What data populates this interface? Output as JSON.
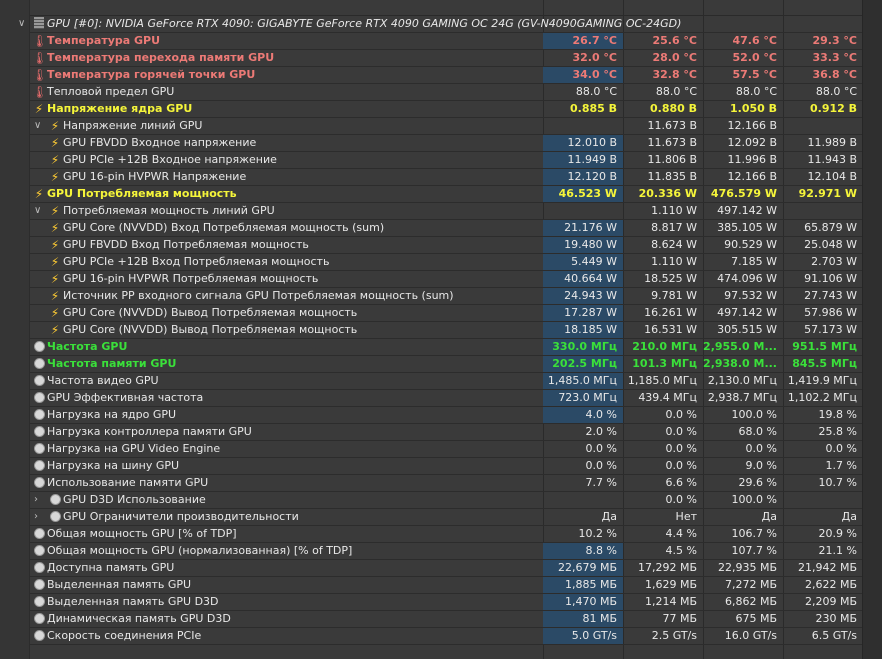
{
  "device": {
    "title": "GPU [#0]: NVIDIA GeForce RTX 4090: GIGABYTE GeForce RTX 4090 GAMING OC 24G (GV-N4090GAMING OC-24GD)",
    "icon": "gpu-chip-icon"
  },
  "colors": {
    "red": "#ec7a76",
    "yellow": "#f5f53a",
    "green": "#3ae03a",
    "highlight": "#2b4a66"
  },
  "rows": [
    {
      "label": "Температура GPU",
      "icon": "therm",
      "style": "red",
      "hl": true,
      "v": [
        "26.7 °C",
        "25.6 °C",
        "47.6 °C",
        "29.3 °C"
      ]
    },
    {
      "label": "Температура перехода памяти GPU",
      "icon": "therm",
      "style": "red",
      "hl": false,
      "v": [
        "32.0 °C",
        "28.0 °C",
        "52.0 °C",
        "33.3 °C"
      ]
    },
    {
      "label": "Температура горячей точки GPU",
      "icon": "therm",
      "style": "red",
      "hl": true,
      "v": [
        "34.0 °C",
        "32.8 °C",
        "57.5 °C",
        "36.8 °C"
      ]
    },
    {
      "label": "Тепловой предел GPU",
      "icon": "therm",
      "style": "",
      "hl": false,
      "v": [
        "88.0 °C",
        "88.0 °C",
        "88.0 °C",
        "88.0 °C"
      ]
    },
    {
      "label": "Напряжение ядра GPU",
      "icon": "bolt",
      "style": "yel",
      "hl": false,
      "v": [
        "0.885 В",
        "0.880 В",
        "1.050 В",
        "0.912 В"
      ]
    },
    {
      "label": "Напряжение линий GPU",
      "icon": "bolt",
      "style": "",
      "hl": false,
      "sub": true,
      "exp": true,
      "v": [
        "",
        "11.673 В",
        "12.166 В",
        ""
      ]
    },
    {
      "label": "GPU FBVDD Входное напряжение",
      "icon": "bolt",
      "style": "",
      "hl": true,
      "sub": true,
      "v": [
        "12.010 В",
        "11.673 В",
        "12.092 В",
        "11.989 В"
      ]
    },
    {
      "label": "GPU PCIe +12В Входное напряжение",
      "icon": "bolt",
      "style": "",
      "hl": true,
      "sub": true,
      "v": [
        "11.949 В",
        "11.806 В",
        "11.996 В",
        "11.943 В"
      ]
    },
    {
      "label": "GPU 16-pin HVPWR Напряжение",
      "icon": "bolt",
      "style": "",
      "hl": true,
      "sub": true,
      "v": [
        "12.120 В",
        "11.835 В",
        "12.166 В",
        "12.104 В"
      ]
    },
    {
      "label": "GPU Потребляемая мощность",
      "icon": "bolt",
      "style": "yel",
      "hl": true,
      "v": [
        "46.523 W",
        "20.336 W",
        "476.579 W",
        "92.971 W"
      ]
    },
    {
      "label": "Потребляемая мощность линий GPU",
      "icon": "bolt",
      "style": "",
      "hl": false,
      "sub": true,
      "exp": true,
      "v": [
        "",
        "1.110 W",
        "497.142 W",
        ""
      ]
    },
    {
      "label": "GPU Core (NVVDD) Вход Потребляемая мощность (sum)",
      "icon": "bolt",
      "style": "",
      "hl": true,
      "sub": true,
      "v": [
        "21.176 W",
        "8.817 W",
        "385.105 W",
        "65.879 W"
      ]
    },
    {
      "label": "GPU FBVDD Вход Потребляемая мощность",
      "icon": "bolt",
      "style": "",
      "hl": true,
      "sub": true,
      "v": [
        "19.480 W",
        "8.624 W",
        "90.529 W",
        "25.048 W"
      ]
    },
    {
      "label": "GPU PCIe +12В Вход Потребляемая мощность",
      "icon": "bolt",
      "style": "",
      "hl": true,
      "sub": true,
      "v": [
        "5.449 W",
        "1.110 W",
        "7.185 W",
        "2.703 W"
      ]
    },
    {
      "label": "GPU 16-pin HVPWR Потребляемая мощность",
      "icon": "bolt",
      "style": "",
      "hl": true,
      "sub": true,
      "v": [
        "40.664 W",
        "18.525 W",
        "474.096 W",
        "91.106 W"
      ]
    },
    {
      "label": "Источник PP входного сигнала GPU Потребляемая мощность (sum)",
      "icon": "bolt",
      "style": "",
      "hl": true,
      "sub": true,
      "v": [
        "24.943 W",
        "9.781 W",
        "97.532 W",
        "27.743 W"
      ]
    },
    {
      "label": "GPU Core (NVVDD) Вывод Потребляемая мощность",
      "icon": "bolt",
      "style": "",
      "hl": true,
      "sub": true,
      "v": [
        "17.287 W",
        "16.261 W",
        "497.142 W",
        "57.986 W"
      ]
    },
    {
      "label": "GPU Core (NVVDD) Вывод Потребляемая мощность",
      "icon": "bolt",
      "style": "",
      "hl": true,
      "sub": true,
      "v": [
        "18.185 W",
        "16.531 W",
        "305.515 W",
        "57.173 W"
      ]
    },
    {
      "label": "Частота GPU",
      "icon": "clock",
      "style": "grn",
      "hl": true,
      "v": [
        "330.0 МГц",
        "210.0 МГц",
        "2,955.0 М...",
        "951.5 МГц"
      ]
    },
    {
      "label": "Частота памяти GPU",
      "icon": "clock",
      "style": "grn",
      "hl": true,
      "v": [
        "202.5 МГц",
        "101.3 МГц",
        "2,938.0 М...",
        "845.5 МГц"
      ]
    },
    {
      "label": "Частота видео GPU",
      "icon": "clock",
      "style": "",
      "hl": true,
      "v": [
        "1,485.0 МГц",
        "1,185.0 МГц",
        "2,130.0 МГц",
        "1,419.9 МГц"
      ]
    },
    {
      "label": "GPU Эффективная частота",
      "icon": "clock",
      "style": "",
      "hl": true,
      "v": [
        "723.0 МГц",
        "439.4 МГц",
        "2,938.7 МГц",
        "1,102.2 МГц"
      ]
    },
    {
      "label": "Нагрузка на ядро GPU",
      "icon": "clock",
      "style": "",
      "hl": true,
      "v": [
        "4.0 %",
        "0.0 %",
        "100.0 %",
        "19.8 %"
      ]
    },
    {
      "label": "Нагрузка контроллера памяти GPU",
      "icon": "clock",
      "style": "",
      "hl": false,
      "v": [
        "2.0 %",
        "0.0 %",
        "68.0 %",
        "25.8 %"
      ]
    },
    {
      "label": "Нагрузка на GPU Video Engine",
      "icon": "clock",
      "style": "",
      "hl": false,
      "v": [
        "0.0 %",
        "0.0 %",
        "0.0 %",
        "0.0 %"
      ]
    },
    {
      "label": "Нагрузка на шину GPU",
      "icon": "clock",
      "style": "",
      "hl": false,
      "v": [
        "0.0 %",
        "0.0 %",
        "9.0 %",
        "1.7 %"
      ]
    },
    {
      "label": "Использование памяти GPU",
      "icon": "clock",
      "style": "",
      "hl": false,
      "v": [
        "7.7 %",
        "6.6 %",
        "29.6 %",
        "10.7 %"
      ]
    },
    {
      "label": "GPU D3D Использование",
      "icon": "clock",
      "style": "",
      "hl": false,
      "sub": true,
      "exp": true,
      "collapsed": true,
      "v": [
        "",
        "0.0 %",
        "100.0 %",
        ""
      ]
    },
    {
      "label": "GPU Ограничители производительности",
      "icon": "clock",
      "style": "",
      "hl": false,
      "sub": true,
      "exp": true,
      "collapsed": true,
      "v": [
        "Да",
        "Нет",
        "Да",
        "Да"
      ]
    },
    {
      "label": "Общая мощность GPU [% of TDP]",
      "icon": "clock",
      "style": "",
      "hl": false,
      "v": [
        "10.2 %",
        "4.4 %",
        "106.7 %",
        "20.9 %"
      ]
    },
    {
      "label": "Общая мощность GPU (нормализованная) [% of TDP]",
      "icon": "clock",
      "style": "",
      "hl": true,
      "v": [
        "8.8 %",
        "4.5 %",
        "107.7 %",
        "21.1 %"
      ]
    },
    {
      "label": "Доступна память GPU",
      "icon": "clock",
      "style": "",
      "hl": true,
      "v": [
        "22,679 МБ",
        "17,292 МБ",
        "22,935 МБ",
        "21,942 МБ"
      ]
    },
    {
      "label": "Выделенная память GPU",
      "icon": "clock",
      "style": "",
      "hl": true,
      "v": [
        "1,885 МБ",
        "1,629 МБ",
        "7,272 МБ",
        "2,622 МБ"
      ]
    },
    {
      "label": "Выделенная память GPU D3D",
      "icon": "clock",
      "style": "",
      "hl": true,
      "v": [
        "1,470 МБ",
        "1,214 МБ",
        "6,862 МБ",
        "2,209 МБ"
      ]
    },
    {
      "label": "Динамическая память GPU D3D",
      "icon": "clock",
      "style": "",
      "hl": true,
      "v": [
        "81 МБ",
        "77 МБ",
        "675 МБ",
        "230 МБ"
      ]
    },
    {
      "label": "Скорость соединения PCIe",
      "icon": "clock",
      "style": "",
      "hl": true,
      "v": [
        "5.0 GT/s",
        "2.5 GT/s",
        "16.0 GT/s",
        "6.5 GT/s"
      ]
    }
  ]
}
